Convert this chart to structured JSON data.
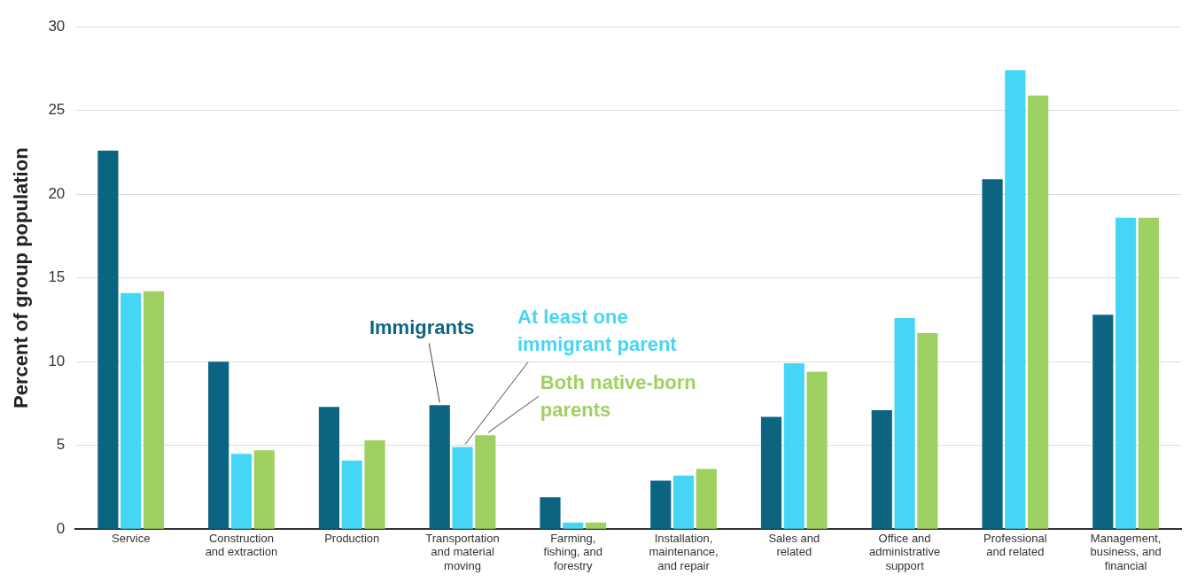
{
  "chart_data": {
    "type": "bar",
    "ylabel": "Percent of group population",
    "categories": [
      "Service",
      "Construction and extraction",
      "Production",
      "Transportation and material moving",
      "Farming, fishing, and forestry",
      "Installation, maintenance, and repair",
      "Sales and related",
      "Office and administrative support",
      "Professional and related",
      "Management, business, and financial"
    ],
    "series": [
      {
        "name": "Immigrants",
        "color": "#0b6580",
        "values": [
          22.6,
          10,
          7.3,
          7.4,
          1.9,
          2.9,
          6.7,
          7.1,
          20.9,
          12.8
        ]
      },
      {
        "name": "At least one immigrant parent",
        "color": "#46d6f5",
        "values": [
          14.1,
          4.5,
          4.1,
          4.9,
          0.4,
          3.2,
          9.9,
          12.6,
          27.4,
          18.6
        ]
      },
      {
        "name": "Both native-born parents",
        "color": "#9fd162",
        "values": [
          14.2,
          4.7,
          5.3,
          5.6,
          0.4,
          3.6,
          9.4,
          11.7,
          25.9,
          18.6
        ]
      }
    ],
    "ylim": [
      0,
      30
    ],
    "yticks": [
      0,
      5,
      10,
      15,
      20,
      25,
      30
    ],
    "grid": "y",
    "legend": false
  }
}
